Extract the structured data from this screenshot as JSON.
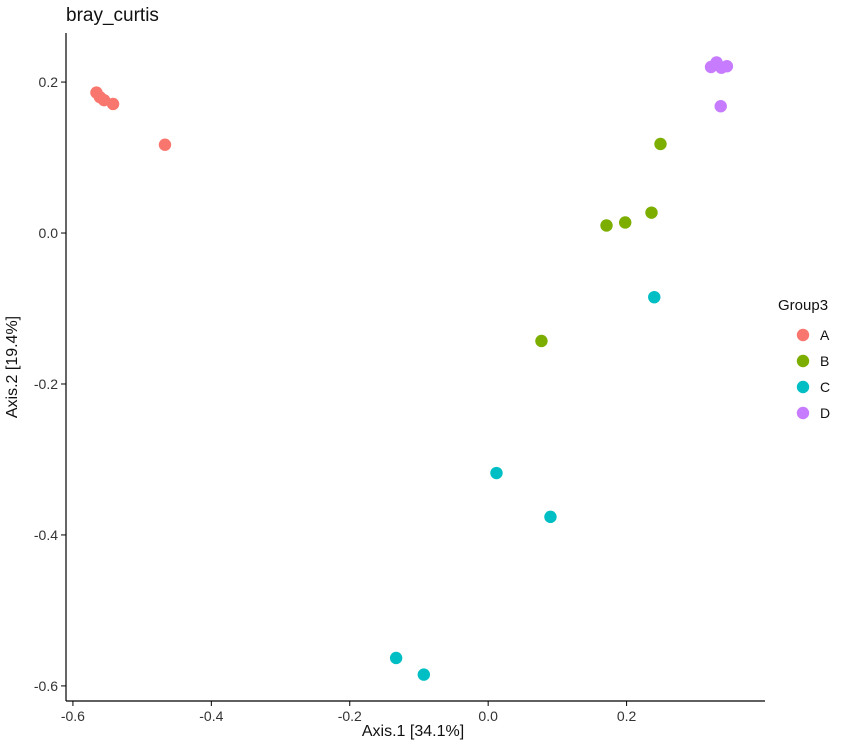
{
  "chart_data": {
    "type": "scatter",
    "title": "bray_curtis",
    "xlabel": "Axis.1   [34.1%]",
    "ylabel": "Axis.2   [19.4%]",
    "xlim": [
      -0.61,
      0.4
    ],
    "ylim": [
      -0.62,
      0.265
    ],
    "x_ticks": [
      -0.6,
      -0.4,
      -0.2,
      0.0,
      0.2
    ],
    "x_tick_labels": [
      "-0.6",
      "-0.4",
      "-0.2",
      "0.0",
      "0.2"
    ],
    "y_ticks": [
      0.2,
      0.0,
      -0.2,
      -0.4,
      -0.6
    ],
    "y_tick_labels": [
      "0.2",
      "0.0",
      "-0.2",
      "-0.4",
      "-0.6"
    ],
    "grid": false,
    "legend": {
      "title": "Group3",
      "placement": "right"
    },
    "series": [
      {
        "name": "A",
        "color": "#F8766D",
        "points": [
          [
            -0.566,
            0.186
          ],
          [
            -0.561,
            0.18
          ],
          [
            -0.555,
            0.176
          ],
          [
            -0.542,
            0.171
          ],
          [
            -0.467,
            0.117
          ]
        ]
      },
      {
        "name": "B",
        "color": "#7CAE00",
        "points": [
          [
            0.249,
            0.118
          ],
          [
            0.171,
            0.01
          ],
          [
            0.198,
            0.014
          ],
          [
            0.236,
            0.027
          ],
          [
            0.077,
            -0.143
          ]
        ]
      },
      {
        "name": "C",
        "color": "#00BFC4",
        "points": [
          [
            0.24,
            -0.085
          ],
          [
            0.012,
            -0.318
          ],
          [
            0.09,
            -0.376
          ],
          [
            -0.133,
            -0.563
          ],
          [
            -0.093,
            -0.585
          ]
        ]
      },
      {
        "name": "D",
        "color": "#C77CFF",
        "points": [
          [
            0.322,
            0.22
          ],
          [
            0.33,
            0.226
          ],
          [
            0.337,
            0.219
          ],
          [
            0.345,
            0.221
          ],
          [
            0.336,
            0.168
          ]
        ]
      }
    ]
  }
}
